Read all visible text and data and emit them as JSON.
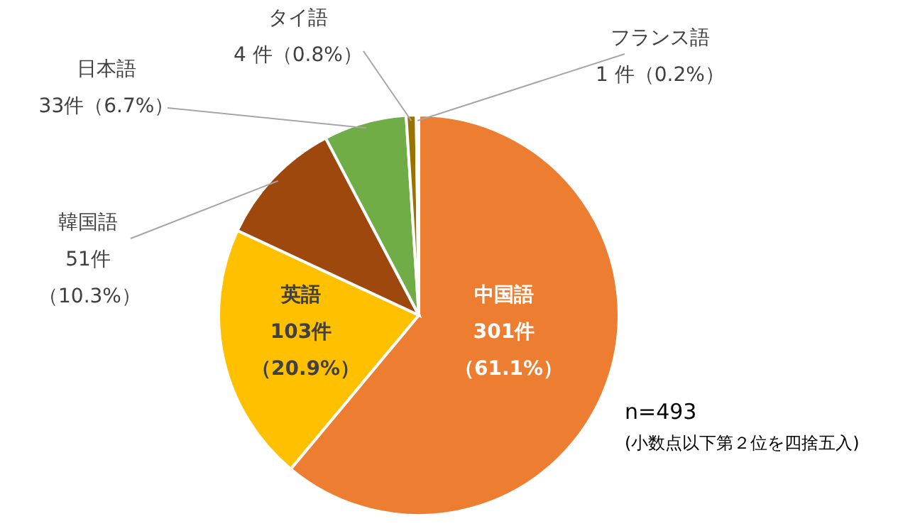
{
  "chart_data": {
    "type": "pie",
    "categories": [
      "中国語",
      "英語",
      "韓国語",
      "日本語",
      "タイ語",
      "フランス語"
    ],
    "values": [
      301,
      103,
      51,
      33,
      4,
      1
    ],
    "colors": [
      "#ed7d31",
      "#ffc000",
      "#9e480e",
      "#70ad47",
      "#997300",
      "#a5a5a5"
    ],
    "value_labels": [
      "301件（61.1%）",
      "103件（20.9%）",
      "51件（10.3%）",
      "33件（6.7%）",
      "4 件（0.8%）",
      "1 件（0.2%）"
    ],
    "annotations": [
      "n=493",
      "(小数点以下第２位を四捨五入)"
    ]
  }
}
